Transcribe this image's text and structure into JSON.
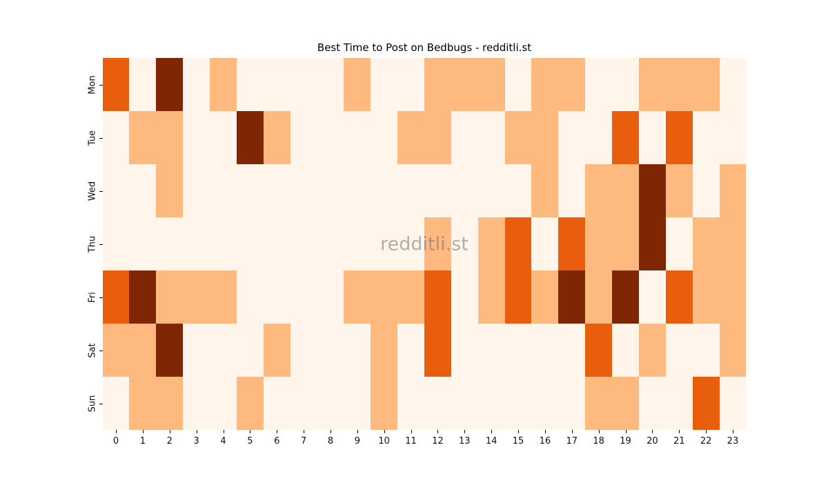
{
  "title": "Best Time to Post on Bedbugs - redditli.st",
  "watermark": "redditli.st",
  "chart_data": {
    "type": "heatmap",
    "title": "Best Time to Post on Bedbugs - redditli.st",
    "xlabel": "",
    "ylabel": "",
    "x_tick_labels": [
      "0",
      "1",
      "2",
      "3",
      "4",
      "5",
      "6",
      "7",
      "8",
      "9",
      "10",
      "11",
      "12",
      "13",
      "14",
      "15",
      "16",
      "17",
      "18",
      "19",
      "20",
      "21",
      "22",
      "23"
    ],
    "y_tick_labels": [
      "Mon",
      "Tue",
      "Wed",
      "Thu",
      "Fri",
      "Sat",
      "Sun"
    ],
    "legend": "none",
    "grid": "off",
    "level_names": [
      "none",
      "low",
      "medium",
      "high"
    ],
    "palette": [
      "#fff5eb",
      "#fdb97e",
      "#e95e0d",
      "#7f2704"
    ],
    "matrix": [
      [
        2,
        0,
        3,
        0,
        1,
        0,
        0,
        0,
        0,
        1,
        0,
        0,
        1,
        1,
        1,
        0,
        1,
        1,
        0,
        0,
        1,
        1,
        1,
        0
      ],
      [
        0,
        1,
        1,
        0,
        0,
        3,
        1,
        0,
        0,
        0,
        0,
        1,
        1,
        0,
        0,
        1,
        1,
        0,
        0,
        2,
        0,
        2,
        0,
        0
      ],
      [
        0,
        0,
        1,
        0,
        0,
        0,
        0,
        0,
        0,
        0,
        0,
        0,
        0,
        0,
        0,
        0,
        1,
        0,
        1,
        1,
        3,
        1,
        0,
        1
      ],
      [
        0,
        0,
        0,
        0,
        0,
        0,
        0,
        0,
        0,
        0,
        0,
        0,
        1,
        0,
        1,
        2,
        0,
        2,
        1,
        1,
        3,
        0,
        1,
        1
      ],
      [
        2,
        3,
        1,
        1,
        1,
        0,
        0,
        0,
        0,
        1,
        1,
        1,
        2,
        0,
        1,
        2,
        1,
        3,
        1,
        3,
        0,
        2,
        1,
        1
      ],
      [
        1,
        1,
        3,
        0,
        0,
        0,
        1,
        0,
        0,
        0,
        1,
        0,
        2,
        0,
        0,
        0,
        0,
        0,
        2,
        0,
        1,
        0,
        0,
        1
      ],
      [
        0,
        1,
        1,
        0,
        0,
        1,
        0,
        0,
        0,
        0,
        1,
        0,
        0,
        0,
        0,
        0,
        0,
        0,
        1,
        1,
        0,
        0,
        2,
        0
      ]
    ]
  },
  "colors": {
    "background": "#ffffff",
    "text": "#000000",
    "tick": "#000000",
    "watermark_gray": "#6e6e6e"
  }
}
